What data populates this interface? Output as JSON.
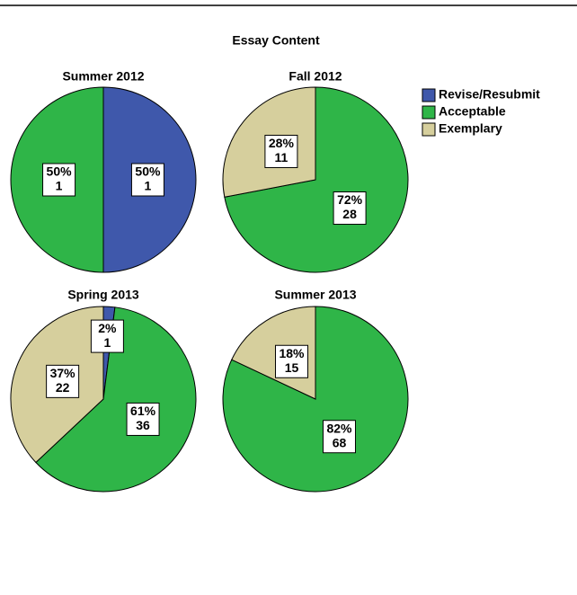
{
  "title": "Essay Content",
  "legend": {
    "labels": [
      "Revise/Resubmit",
      "Acceptable",
      "Exemplary"
    ],
    "colors": [
      "#3f58ab",
      "#2fb548",
      "#d6cf9d"
    ]
  },
  "chart_data": [
    {
      "type": "pie",
      "title": "Summer 2012",
      "categories": [
        "Revise/Resubmit",
        "Acceptable"
      ],
      "values": [
        50,
        50
      ],
      "value_labels": [
        "50%",
        "50%"
      ],
      "counts": [
        1,
        1
      ],
      "colors": [
        "#3f58ab",
        "#2fb548"
      ]
    },
    {
      "type": "pie",
      "title": "Fall 2012",
      "categories": [
        "Acceptable",
        "Exemplary"
      ],
      "values": [
        72,
        28
      ],
      "value_labels": [
        "72%",
        "28%"
      ],
      "counts": [
        28,
        11
      ],
      "colors": [
        "#2fb548",
        "#d6cf9d"
      ]
    },
    {
      "type": "pie",
      "title": "Spring 2013",
      "categories": [
        "Revise/Resubmit",
        "Acceptable",
        "Exemplary"
      ],
      "values": [
        2,
        61,
        37
      ],
      "value_labels": [
        "2%",
        "61%",
        "37%"
      ],
      "counts": [
        1,
        36,
        22
      ],
      "colors": [
        "#3f58ab",
        "#2fb548",
        "#d6cf9d"
      ]
    },
    {
      "type": "pie",
      "title": "Summer 2013",
      "categories": [
        "Acceptable",
        "Exemplary"
      ],
      "values": [
        82,
        18
      ],
      "value_labels": [
        "82%",
        "18%"
      ],
      "counts": [
        68,
        15
      ],
      "colors": [
        "#2fb548",
        "#d6cf9d"
      ]
    }
  ]
}
